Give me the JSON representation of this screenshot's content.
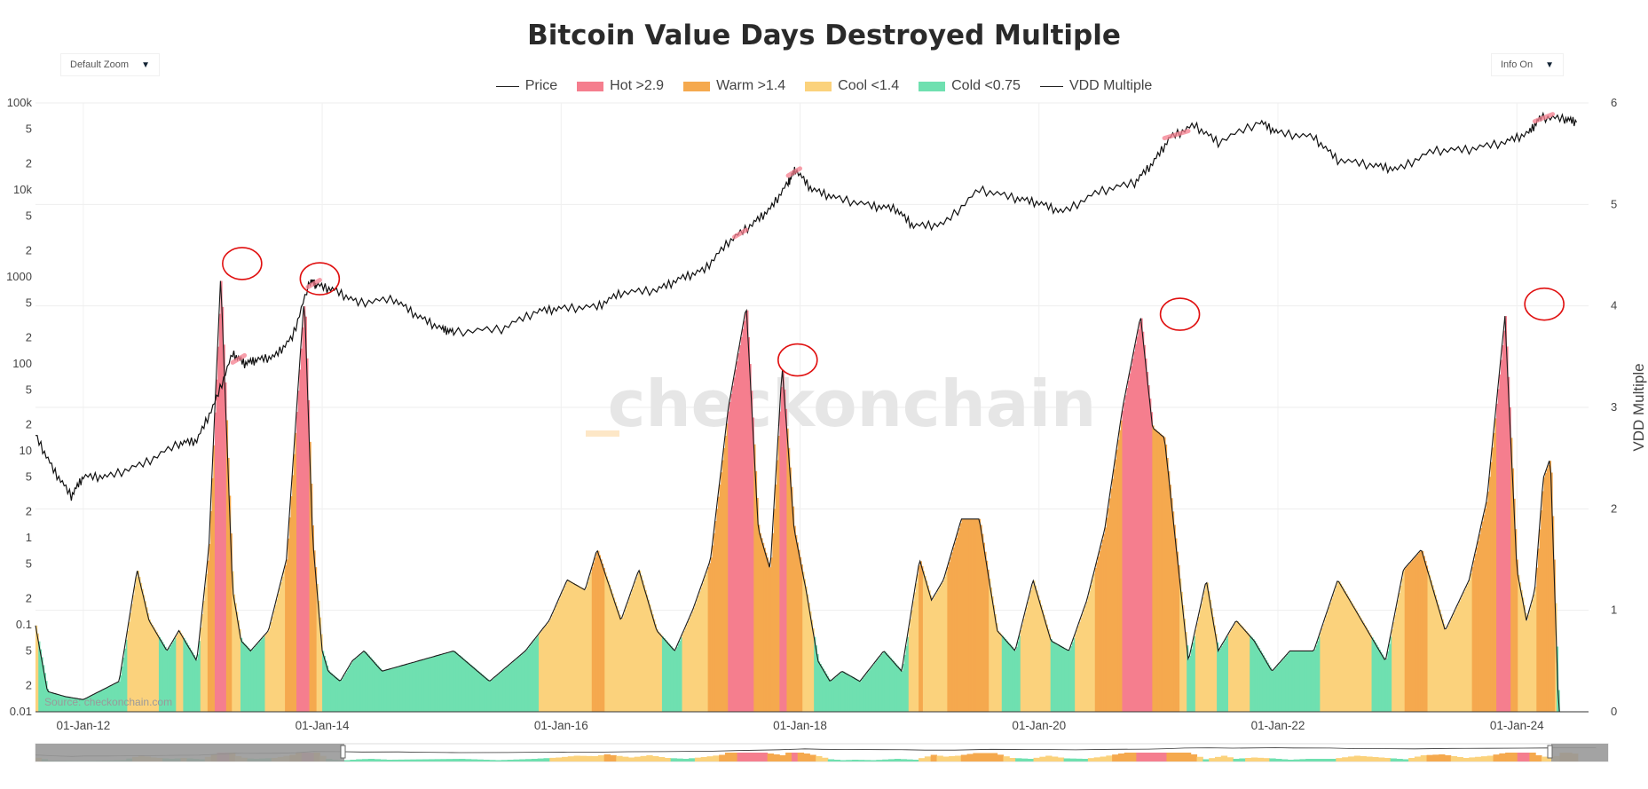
{
  "title": "Bitcoin Value Days Destroyed Multiple",
  "controls": {
    "zoom_label": "Default Zoom",
    "info_label": "Info On",
    "arrow": "▼"
  },
  "legend": [
    {
      "label": "Price",
      "kind": "line",
      "color": "#222222"
    },
    {
      "label": "Hot >2.9",
      "kind": "box",
      "color": "#f57e8e"
    },
    {
      "label": "Warm >1.4",
      "kind": "box",
      "color": "#f5a94e"
    },
    {
      "label": "Cool <1.4",
      "kind": "box",
      "color": "#fbd27c"
    },
    {
      "label": "Cold <0.75",
      "kind": "box",
      "color": "#6fe0b0"
    },
    {
      "label": "VDD Multiple",
      "kind": "line",
      "color": "#222222"
    }
  ],
  "watermark": "checkonchain",
  "source": "Source: checkonchain.com",
  "colors": {
    "hot": "#f57e8e",
    "warm": "#f5a94e",
    "cool": "#fbd27c",
    "cold": "#6fe0b0",
    "annotation": "#e01010"
  },
  "chart_data": {
    "type": "area",
    "title": "Bitcoin Value Days Destroyed Multiple",
    "x_range": [
      "2011-08",
      "2024-06"
    ],
    "x_ticks": [
      "01-Jan-12",
      "01-Jan-14",
      "01-Jan-16",
      "01-Jan-18",
      "01-Jan-20",
      "01-Jan-22",
      "01-Jan-24"
    ],
    "y_left": {
      "scale": "log",
      "range": [
        0.01,
        100000
      ],
      "tick_labels": [
        "100k",
        "5",
        "2",
        "10k",
        "5",
        "2",
        "1000",
        "5",
        "2",
        "100",
        "5",
        "2",
        "10",
        "5",
        "2",
        "1",
        "5",
        "2",
        "0.1",
        "5",
        "2",
        "0.01"
      ]
    },
    "y_right": {
      "label": "VDD Multiple",
      "range": [
        0,
        6
      ],
      "tick_labels": [
        "6",
        "5",
        "4",
        "3",
        "2",
        "1",
        "0"
      ]
    },
    "price_series": {
      "name": "Price",
      "x": [
        2011.6,
        2011.75,
        2011.9,
        2012.0,
        2012.2,
        2012.5,
        2012.8,
        2012.95,
        2013.1,
        2013.25,
        2013.35,
        2013.45,
        2013.6,
        2013.75,
        2013.9,
        2013.95,
        2014.1,
        2014.3,
        2014.6,
        2014.8,
        2015.0,
        2015.1,
        2015.5,
        2015.8,
        2016.0,
        2016.3,
        2016.5,
        2016.8,
        2017.0,
        2017.2,
        2017.4,
        2017.6,
        2017.75,
        2017.9,
        2017.96,
        2018.1,
        2018.3,
        2018.6,
        2018.8,
        2018.95,
        2019.2,
        2019.5,
        2019.8,
        2020.0,
        2020.2,
        2020.5,
        2020.8,
        2020.95,
        2021.1,
        2021.3,
        2021.5,
        2021.85,
        2022.0,
        2022.3,
        2022.5,
        2022.8,
        2023.0,
        2023.3,
        2023.6,
        2023.9,
        2024.1,
        2024.2,
        2024.4,
        2024.5
      ],
      "y": [
        15,
        6,
        3,
        5,
        5,
        7,
        12,
        13,
        35,
        130,
        100,
        110,
        120,
        200,
        900,
        800,
        700,
        500,
        550,
        350,
        250,
        230,
        250,
        400,
        430,
        450,
        650,
        700,
        950,
        1200,
        2500,
        4000,
        6000,
        12000,
        17000,
        10000,
        8000,
        6500,
        6000,
        3800,
        4000,
        10000,
        8000,
        7000,
        5500,
        9500,
        12000,
        20000,
        40000,
        55000,
        35000,
        60000,
        45000,
        40000,
        22000,
        19000,
        17000,
        28000,
        29000,
        35000,
        45000,
        68000,
        65000,
        60000
      ]
    },
    "vdd_series": {
      "name": "VDD Multiple",
      "x": [
        2011.6,
        2011.7,
        2011.85,
        2012.0,
        2012.3,
        2012.45,
        2012.55,
        2012.7,
        2012.8,
        2012.95,
        2013.05,
        2013.15,
        2013.25,
        2013.32,
        2013.4,
        2013.55,
        2013.7,
        2013.85,
        2013.92,
        2014.0,
        2014.05,
        2014.15,
        2014.25,
        2014.35,
        2014.5,
        2014.8,
        2015.1,
        2015.4,
        2015.7,
        2015.9,
        2016.05,
        2016.2,
        2016.3,
        2016.5,
        2016.65,
        2016.8,
        2016.95,
        2017.1,
        2017.25,
        2017.4,
        2017.55,
        2017.65,
        2017.75,
        2017.85,
        2017.95,
        2018.05,
        2018.15,
        2018.25,
        2018.35,
        2018.5,
        2018.7,
        2018.85,
        2019.0,
        2019.1,
        2019.2,
        2019.35,
        2019.5,
        2019.65,
        2019.8,
        2019.95,
        2020.1,
        2020.25,
        2020.4,
        2020.55,
        2020.7,
        2020.85,
        2020.95,
        2021.05,
        2021.15,
        2021.25,
        2021.4,
        2021.5,
        2021.65,
        2021.8,
        2021.95,
        2022.1,
        2022.3,
        2022.5,
        2022.7,
        2022.9,
        2023.05,
        2023.2,
        2023.4,
        2023.6,
        2023.75,
        2023.9,
        2024.0,
        2024.08,
        2024.15,
        2024.22,
        2024.28,
        2024.35,
        2024.42,
        2024.5
      ],
      "y": [
        0.85,
        0.2,
        0.15,
        0.12,
        0.3,
        1.4,
        0.9,
        0.6,
        0.8,
        0.5,
        1.6,
        4.3,
        1.2,
        0.7,
        0.6,
        0.8,
        1.5,
        4.1,
        1.7,
        0.6,
        0.4,
        0.3,
        0.5,
        0.6,
        0.4,
        0.5,
        0.6,
        0.3,
        0.6,
        0.9,
        1.3,
        1.2,
        1.6,
        0.9,
        1.4,
        0.8,
        0.6,
        1.0,
        1.5,
        3.0,
        4.0,
        1.8,
        1.4,
        3.4,
        1.8,
        1.2,
        0.5,
        0.3,
        0.4,
        0.3,
        0.6,
        0.4,
        1.5,
        1.1,
        1.3,
        1.9,
        1.9,
        0.8,
        0.6,
        1.3,
        0.7,
        0.6,
        1.1,
        1.8,
        3.0,
        3.9,
        2.8,
        2.7,
        1.6,
        0.5,
        1.3,
        0.6,
        0.9,
        0.7,
        0.4,
        0.6,
        0.6,
        1.3,
        0.9,
        0.5,
        1.4,
        1.6,
        0.8,
        1.3,
        2.1,
        3.9,
        1.4,
        0.9,
        1.2,
        2.3,
        2.5,
        0,
        0,
        0
      ]
    },
    "annotation_circles": [
      "2013.3 peak",
      "2013.95 peak",
      "2017.95 peak",
      "2021.15 peak",
      "2024.2 peak"
    ]
  }
}
